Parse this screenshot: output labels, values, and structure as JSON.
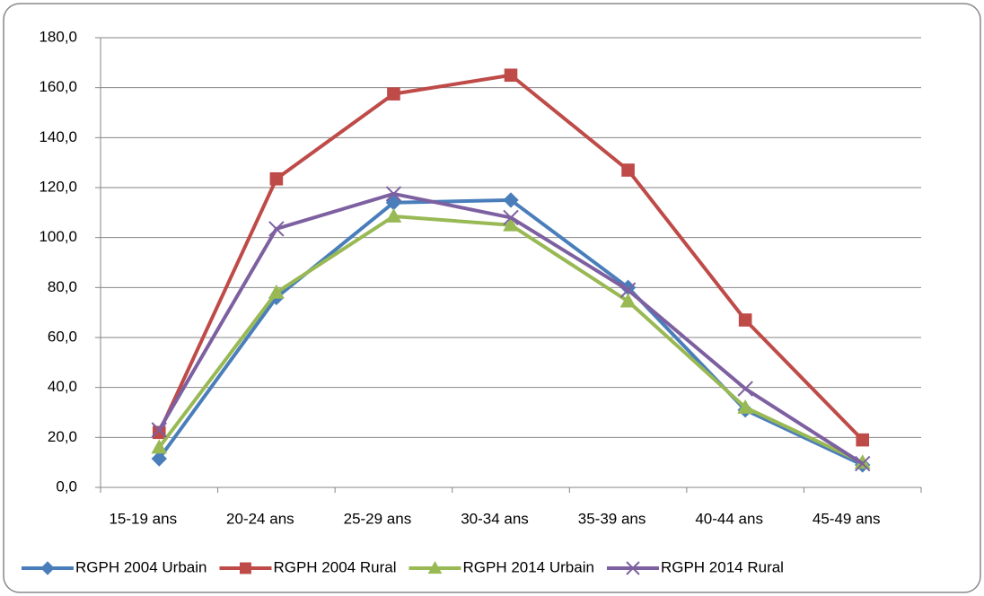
{
  "chart_data": {
    "type": "line",
    "categories": [
      "15-19 ans",
      "20-24 ans",
      "25-29 ans",
      "30-34 ans",
      "35-39 ans",
      "40-44 ans",
      "45-49 ans"
    ],
    "series": [
      {
        "name": "RGPH 2004 Urbain",
        "color": "#4a7ebb",
        "marker": "diamond",
        "values": [
          11.5,
          76,
          114,
          115,
          80,
          31,
          9
        ]
      },
      {
        "name": "RGPH 2004 Rural",
        "color": "#be4b48",
        "marker": "square",
        "values": [
          22,
          123.5,
          157.5,
          165,
          127,
          67,
          19
        ]
      },
      {
        "name": "RGPH 2014 Urbain",
        "color": "#98b954",
        "marker": "triangle",
        "values": [
          16,
          78,
          108.5,
          105,
          74.5,
          32,
          10
        ]
      },
      {
        "name": "RGPH 2014 Rural",
        "color": "#7d60a0",
        "marker": "x",
        "values": [
          23,
          103.5,
          117.5,
          108,
          79,
          39.5,
          9.5
        ]
      }
    ],
    "ylim": [
      0,
      180
    ],
    "yticks": [
      {
        "value": 0,
        "label": "0,0"
      },
      {
        "value": 20,
        "label": "20,0"
      },
      {
        "value": 40,
        "label": "40,0"
      },
      {
        "value": 60,
        "label": "60,0"
      },
      {
        "value": 80,
        "label": "80,0"
      },
      {
        "value": 100,
        "label": "100,0"
      },
      {
        "value": 120,
        "label": "120,0"
      },
      {
        "value": 140,
        "label": "140,0"
      },
      {
        "value": 160,
        "label": "160,0"
      },
      {
        "value": 180,
        "label": "180,0"
      }
    ],
    "grid": true,
    "legend": "bottom"
  }
}
